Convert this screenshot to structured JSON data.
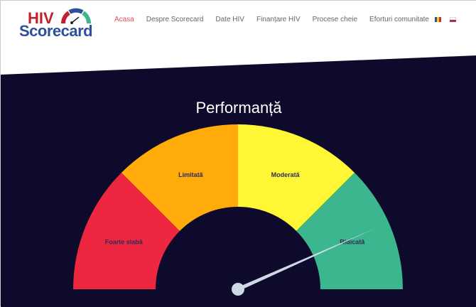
{
  "logo": {
    "line1": "HIV",
    "line2": "Scorecard"
  },
  "nav": {
    "items": [
      {
        "label": "Acasa",
        "active": true
      },
      {
        "label": "Despre Scorecard"
      },
      {
        "label": "Date HIV"
      },
      {
        "label": "Finanțare HIV"
      },
      {
        "label": "Procese cheie"
      },
      {
        "label": "Eforturi comunitate"
      }
    ],
    "languages": [
      "ro-flag-icon",
      "ru-flag-icon"
    ]
  },
  "gauge": {
    "title": "Performanță",
    "segments": [
      {
        "label": "Foarte slabă",
        "color": "#ec273f"
      },
      {
        "label": "Limitată",
        "color": "#ffab09"
      },
      {
        "label": "Moderată",
        "color": "#fff735"
      },
      {
        "label": "Ridicată",
        "color": "#3bb68f"
      }
    ],
    "needle_value_fraction": 0.867,
    "needle_color": "#cfd8e6",
    "background": "#0d0a2b"
  }
}
